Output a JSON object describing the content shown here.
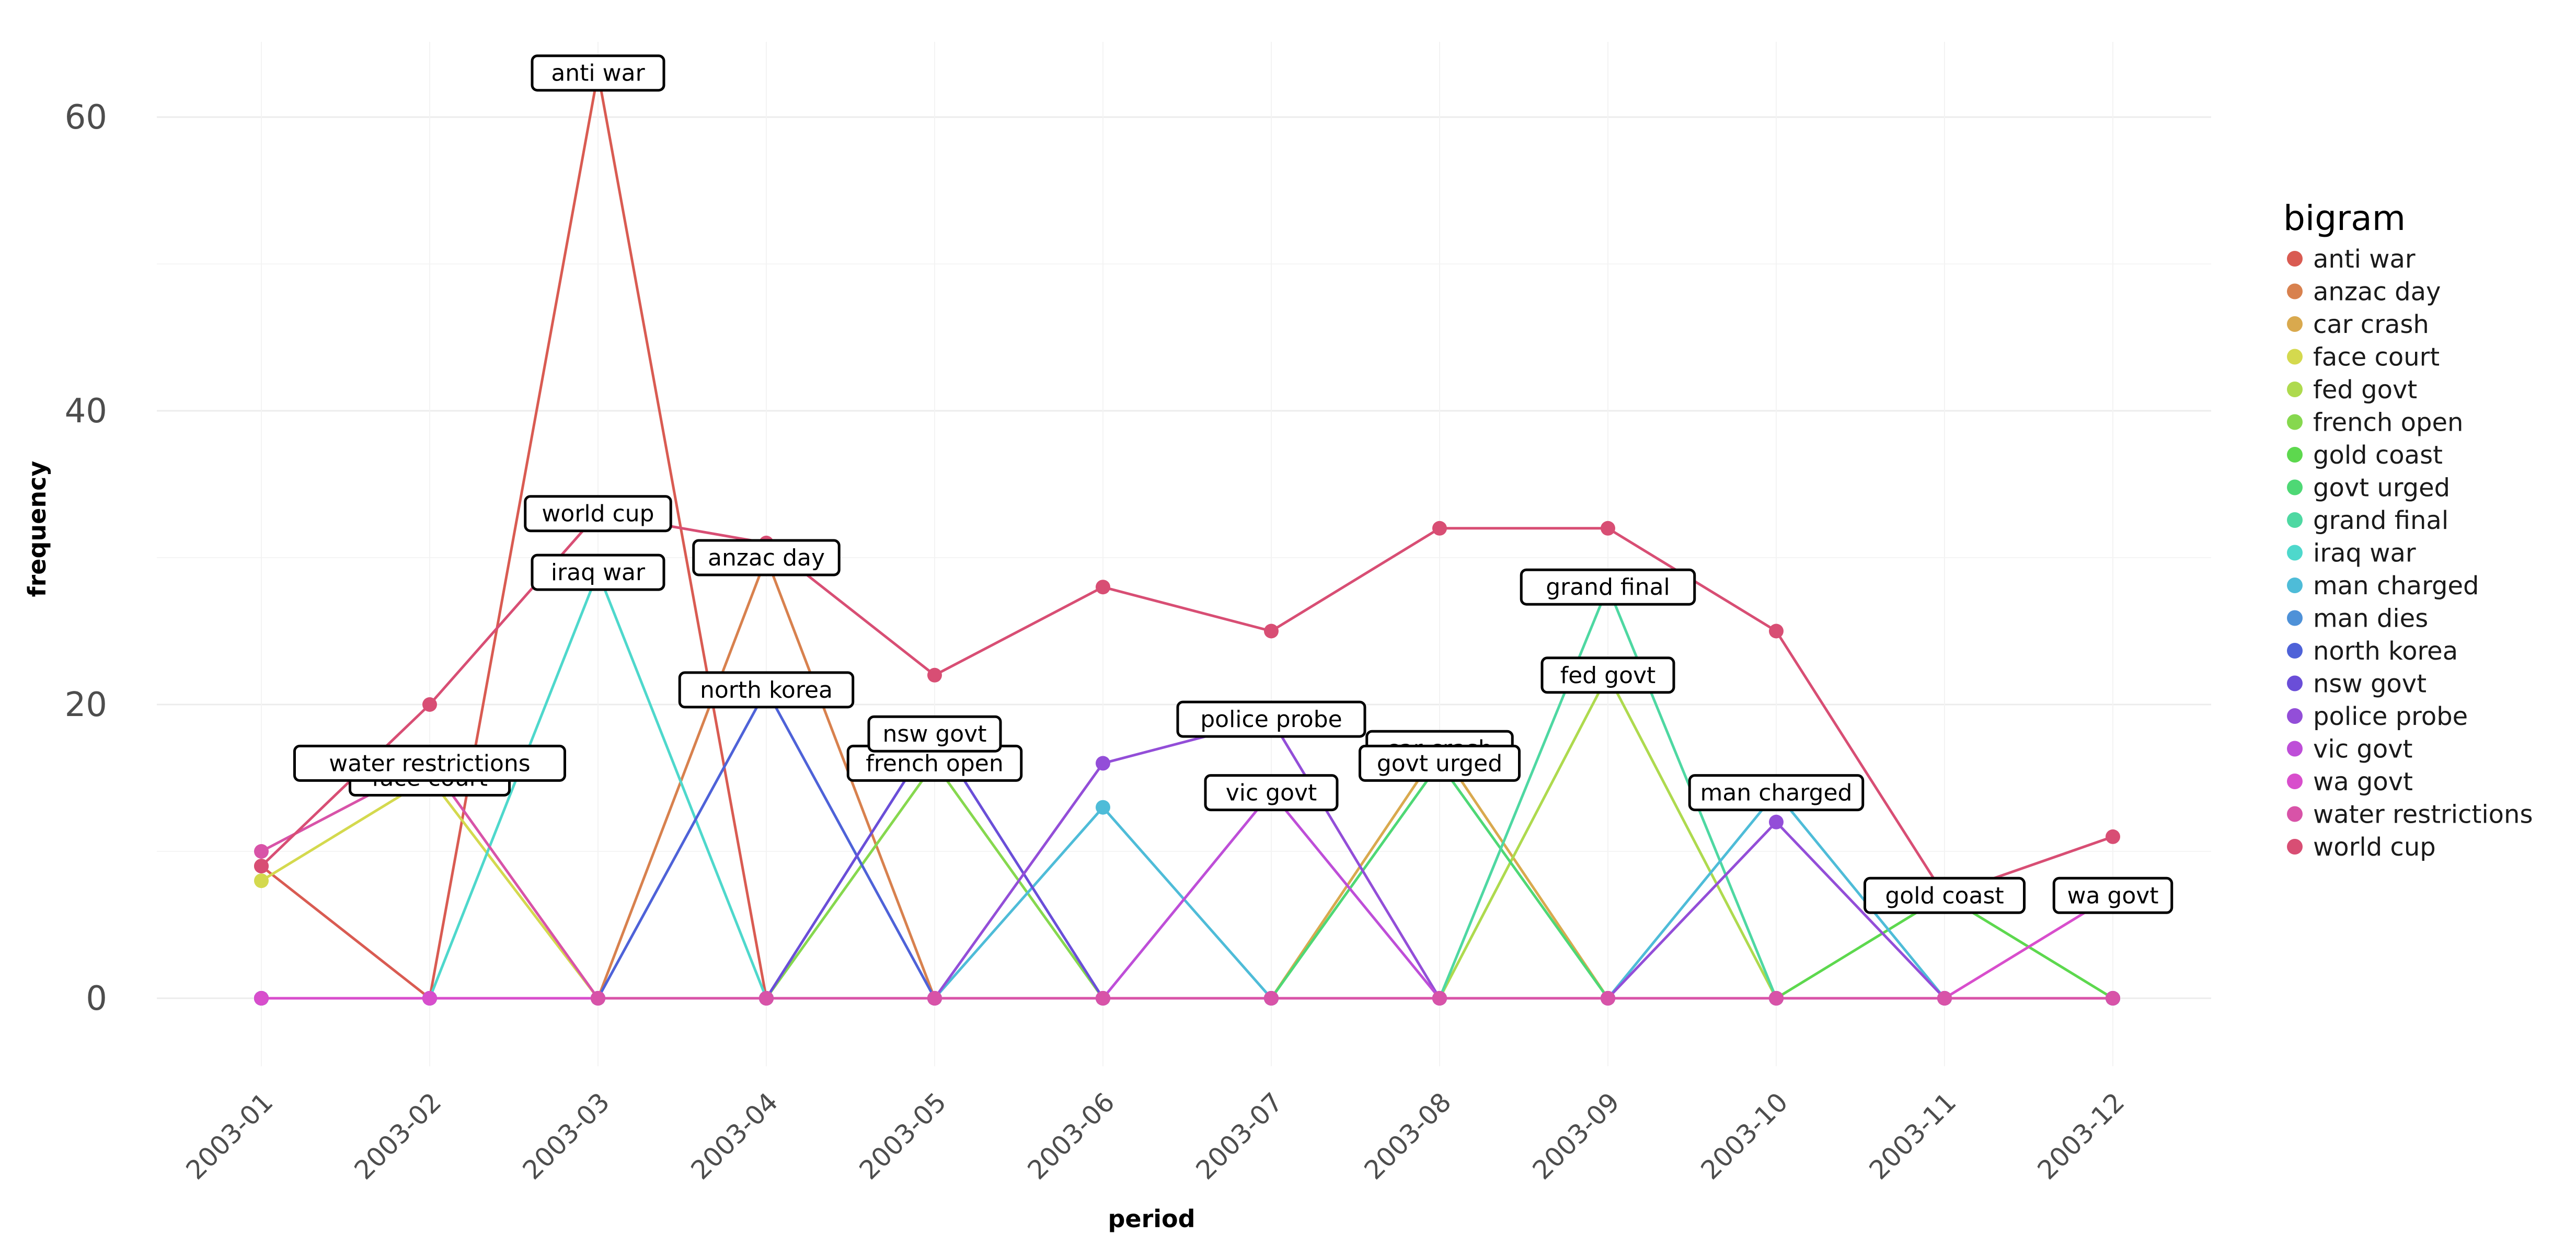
{
  "chart_data": {
    "type": "line",
    "xlabel": "period",
    "ylabel": "frequency",
    "x": [
      "2003-01",
      "2003-02",
      "2003-03",
      "2003-04",
      "2003-05",
      "2003-06",
      "2003-07",
      "2003-08",
      "2003-09",
      "2003-10",
      "2003-11",
      "2003-12"
    ],
    "y_ticks": [
      0,
      20,
      40,
      60
    ],
    "ylim": [
      -4.5,
      63
    ],
    "grid": true,
    "legend": {
      "title": "bigram",
      "position": "right"
    },
    "series": [
      {
        "name": "anti war",
        "color": "#D95B52",
        "values": [
          9,
          0,
          63,
          0,
          0,
          0,
          0,
          0,
          0,
          0,
          0,
          0
        ],
        "annotation": {
          "index": 2,
          "text": "anti war"
        }
      },
      {
        "name": "anzac day",
        "color": "#D8814E",
        "values": [
          0,
          0,
          0,
          30,
          0,
          0,
          0,
          0,
          0,
          0,
          0,
          0
        ],
        "annotation": {
          "index": 3,
          "text": "anzac day"
        }
      },
      {
        "name": "car crash",
        "color": "#D9A94E",
        "values": [
          0,
          0,
          0,
          0,
          0,
          0,
          0,
          17,
          0,
          0,
          0,
          0
        ],
        "annotation": {
          "index": 7,
          "text": "car crash"
        }
      },
      {
        "name": "face court",
        "color": "#D4D94E",
        "values": [
          8,
          15,
          0,
          0,
          0,
          0,
          0,
          0,
          0,
          0,
          0,
          0
        ],
        "annotation": {
          "index": 1,
          "text": "face court"
        }
      },
      {
        "name": "fed govt",
        "color": "#AEDA4E",
        "values": [
          0,
          0,
          0,
          0,
          0,
          0,
          0,
          0,
          22,
          0,
          0,
          0
        ],
        "annotation": {
          "index": 8,
          "text": "fed govt"
        }
      },
      {
        "name": "french open",
        "color": "#86D84E",
        "values": [
          0,
          0,
          0,
          0,
          16,
          0,
          0,
          0,
          0,
          0,
          0,
          0
        ],
        "annotation": {
          "index": 4,
          "text": "french open"
        }
      },
      {
        "name": "gold coast",
        "color": "#5DD84E",
        "values": [
          0,
          0,
          0,
          0,
          0,
          0,
          0,
          0,
          0,
          0,
          7,
          0
        ],
        "annotation": {
          "index": 10,
          "text": "gold coast"
        }
      },
      {
        "name": "govt urged",
        "color": "#4ED875",
        "values": [
          0,
          0,
          0,
          0,
          0,
          0,
          0,
          16,
          0,
          0,
          0,
          0
        ],
        "annotation": {
          "index": 7,
          "text": "govt urged"
        }
      },
      {
        "name": "grand final",
        "color": "#4ED8A2",
        "values": [
          0,
          0,
          0,
          0,
          0,
          0,
          0,
          0,
          28,
          0,
          0,
          0
        ],
        "annotation": {
          "index": 8,
          "text": "grand final"
        }
      },
      {
        "name": "iraq war",
        "color": "#4ED8CC",
        "values": [
          0,
          0,
          29,
          0,
          0,
          0,
          0,
          0,
          0,
          0,
          0,
          0
        ],
        "annotation": {
          "index": 2,
          "text": "iraq war"
        }
      },
      {
        "name": "man charged",
        "color": "#4EBCD8",
        "values": [
          0,
          0,
          0,
          0,
          0,
          13,
          0,
          0,
          0,
          14,
          0,
          0
        ],
        "annotation": {
          "index": 9,
          "text": "man charged"
        }
      },
      {
        "name": "man dies",
        "color": "#4E91D8",
        "values": [
          0,
          0,
          0,
          0,
          0,
          0,
          0,
          0,
          0,
          0,
          0,
          0
        ],
        "annotation": null
      },
      {
        "name": "north korea",
        "color": "#4E62D8",
        "values": [
          0,
          0,
          0,
          21,
          0,
          0,
          0,
          0,
          0,
          0,
          0,
          0
        ],
        "annotation": {
          "index": 3,
          "text": "north korea"
        }
      },
      {
        "name": "nsw govt",
        "color": "#6A4ED8",
        "values": [
          0,
          0,
          0,
          0,
          18,
          0,
          0,
          0,
          0,
          0,
          0,
          0
        ],
        "annotation": {
          "index": 4,
          "text": "nsw govt"
        }
      },
      {
        "name": "police probe",
        "color": "#934ED8",
        "values": [
          0,
          0,
          0,
          0,
          0,
          16,
          19,
          0,
          0,
          12,
          0,
          0
        ],
        "annotation": {
          "index": 6,
          "text": "police probe"
        }
      },
      {
        "name": "vic govt",
        "color": "#BE4ED8",
        "values": [
          0,
          0,
          0,
          0,
          0,
          0,
          14,
          0,
          0,
          0,
          0,
          0
        ],
        "annotation": {
          "index": 6,
          "text": "vic govt"
        }
      },
      {
        "name": "wa govt",
        "color": "#D84ECC",
        "values": [
          0,
          0,
          0,
          0,
          0,
          0,
          0,
          0,
          0,
          0,
          0,
          7
        ],
        "annotation": {
          "index": 11,
          "text": "wa govt"
        }
      },
      {
        "name": "water restrictions",
        "color": "#D853A8",
        "values": [
          10,
          16,
          0,
          0,
          0,
          0,
          0,
          0,
          0,
          0,
          0,
          0
        ],
        "annotation": {
          "index": 1,
          "text": "water restrictions"
        }
      },
      {
        "name": "world cup",
        "color": "#D84E74",
        "values": [
          9,
          20,
          33,
          31,
          22,
          28,
          25,
          32,
          32,
          25,
          7,
          11
        ],
        "annotation": {
          "index": 2,
          "text": "world cup"
        }
      }
    ]
  }
}
